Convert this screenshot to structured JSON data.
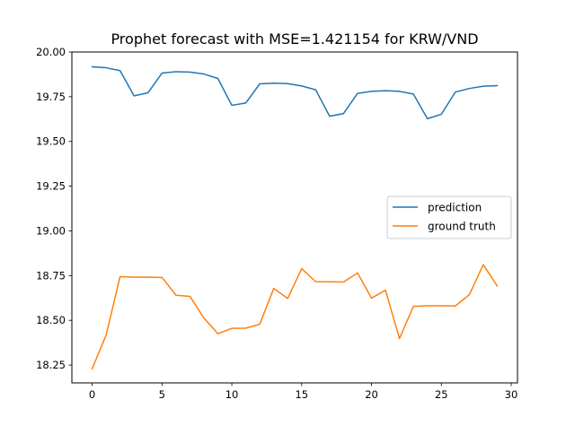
{
  "chart_data": {
    "type": "line",
    "title": "Prophet forecast with MSE=1.421154 for KRW/VND",
    "xlabel": "",
    "ylabel": "",
    "xlim": [
      -1.45,
      30.45
    ],
    "ylim": [
      18.15,
      20.0
    ],
    "x_ticks": [
      0,
      5,
      10,
      15,
      20,
      25,
      30
    ],
    "y_ticks": [
      18.25,
      18.5,
      18.75,
      19.0,
      19.25,
      19.5,
      19.75,
      20.0
    ],
    "y_tick_labels": [
      "18.25",
      "18.50",
      "18.75",
      "19.00",
      "19.25",
      "19.50",
      "19.75",
      "20.00"
    ],
    "grid": false,
    "legend_position": "center-right",
    "x": [
      0,
      1,
      2,
      3,
      4,
      5,
      6,
      7,
      8,
      9,
      10,
      11,
      12,
      13,
      14,
      15,
      16,
      17,
      18,
      19,
      20,
      21,
      22,
      23,
      24,
      25,
      26,
      27,
      28,
      29
    ],
    "series": [
      {
        "name": "prediction",
        "color": "#1f77b4",
        "values": [
          19.917,
          19.912,
          19.896,
          19.755,
          19.772,
          19.882,
          19.89,
          19.888,
          19.877,
          19.852,
          19.702,
          19.715,
          19.822,
          19.826,
          19.823,
          19.81,
          19.789,
          19.641,
          19.656,
          19.769,
          19.78,
          19.784,
          19.78,
          19.765,
          19.627,
          19.652,
          19.776,
          19.796,
          19.809,
          19.812
        ]
      },
      {
        "name": "ground truth",
        "color": "#ff7f0e",
        "values": [
          18.229,
          18.417,
          18.744,
          18.741,
          18.741,
          18.74,
          18.64,
          18.634,
          18.513,
          18.425,
          18.455,
          18.456,
          18.478,
          18.678,
          18.622,
          18.789,
          18.716,
          18.715,
          18.714,
          18.765,
          18.624,
          18.668,
          18.398,
          18.578,
          18.581,
          18.581,
          18.58,
          18.643,
          18.811,
          18.692
        ]
      }
    ]
  }
}
